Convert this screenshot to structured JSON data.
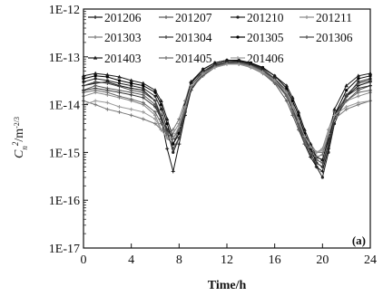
{
  "chart_data": {
    "type": "line",
    "title": "",
    "xlabel": "Time/h",
    "ylabel_text": "C",
    "ylabel_sub": "n",
    "ylabel_sup": "2",
    "ylabel_unit": "/m",
    "ylabel_unit_sup": "-2/3",
    "panel_label": "(a)",
    "xlim": [
      0,
      24
    ],
    "ylim": [
      1e-17,
      1e-12
    ],
    "y_scale": "log",
    "grid": false,
    "legend_position": "top",
    "x_ticks": [
      0,
      4,
      8,
      12,
      16,
      20,
      24
    ],
    "x_tick_labels": [
      "0",
      "4",
      "8",
      "12",
      "16",
      "20",
      "24"
    ],
    "y_ticks": [
      1e-17,
      1e-16,
      1e-15,
      1e-14,
      1e-13,
      1e-12
    ],
    "y_tick_labels": [
      "1E-17",
      "1E-16",
      "1E-15",
      "1E-14",
      "1E-13",
      "1E-12"
    ],
    "x": [
      0,
      1,
      2,
      3,
      4,
      5,
      6,
      6.5,
      7,
      7.5,
      8,
      8.5,
      9,
      10,
      11,
      12,
      13,
      14,
      15,
      16,
      17,
      17.5,
      18,
      18.5,
      19,
      19.5,
      20,
      20.5,
      21,
      22,
      23,
      24
    ],
    "series": [
      {
        "name": "201206",
        "color": "#111111",
        "marker": "cross",
        "values": [
          2.5e-14,
          2.8e-14,
          3e-14,
          2.5e-14,
          2.2e-14,
          2e-14,
          1.2e-14,
          5e-15,
          1.2e-15,
          4e-16,
          1.5e-15,
          6e-15,
          2e-14,
          4.5e-14,
          6.5e-14,
          7.5e-14,
          7.5e-14,
          6.5e-14,
          5e-14,
          3.2e-14,
          1.5e-14,
          8e-15,
          3.5e-15,
          1.5e-15,
          8e-16,
          5e-16,
          4e-16,
          1.2e-15,
          5e-15,
          1.5e-14,
          2.5e-14,
          3e-14
        ]
      },
      {
        "name": "201207",
        "color": "#555555",
        "marker": "cross",
        "values": [
          2e-14,
          2.5e-14,
          2.2e-14,
          2e-14,
          1.8e-14,
          1.6e-14,
          1e-14,
          5e-15,
          2e-15,
          1.5e-15,
          3e-15,
          8e-15,
          2.2e-14,
          4e-14,
          6e-14,
          7e-14,
          7.2e-14,
          6e-14,
          4.5e-14,
          2.8e-14,
          1.2e-14,
          6e-15,
          3e-15,
          1.5e-15,
          1e-15,
          7e-16,
          6e-16,
          1.5e-15,
          5e-15,
          1.2e-14,
          2e-14,
          2.5e-14
        ]
      },
      {
        "name": "201210",
        "color": "#222222",
        "marker": "dot",
        "values": [
          3e-14,
          3.5e-14,
          3.2e-14,
          2.8e-14,
          2.5e-14,
          2.2e-14,
          1.5e-14,
          8e-15,
          3e-15,
          1e-15,
          2e-15,
          7e-15,
          2.5e-14,
          5e-14,
          7e-14,
          8e-14,
          8e-14,
          7e-14,
          5.5e-14,
          3.5e-14,
          2e-14,
          1e-14,
          5e-15,
          2e-15,
          1e-15,
          5e-16,
          3e-16,
          1e-15,
          4e-15,
          1.5e-14,
          3e-14,
          3.5e-14
        ]
      },
      {
        "name": "201211",
        "color": "#888888",
        "marker": "cross",
        "values": [
          1.5e-14,
          1.8e-14,
          1.6e-14,
          1.4e-14,
          1.2e-14,
          1e-14,
          6e-15,
          3e-15,
          2e-15,
          2.5e-15,
          4e-15,
          1e-14,
          2.5e-14,
          4.5e-14,
          6e-14,
          7e-14,
          7e-14,
          6e-14,
          4.5e-14,
          3e-14,
          1.5e-14,
          8e-15,
          4e-15,
          2e-15,
          1.2e-15,
          1e-15,
          1.2e-15,
          3e-15,
          7e-15,
          1.2e-14,
          1.5e-14,
          1.8e-14
        ]
      },
      {
        "name": "201303",
        "color": "#777777",
        "marker": "cross",
        "values": [
          1.2e-14,
          1e-14,
          8e-15,
          7e-15,
          6e-15,
          5e-15,
          4e-15,
          3e-15,
          2.5e-15,
          3e-15,
          5e-15,
          1.2e-14,
          3e-14,
          5e-14,
          6.5e-14,
          7.5e-14,
          7.5e-14,
          6.5e-14,
          5e-14,
          3.5e-14,
          2e-14,
          1e-14,
          5e-15,
          2.5e-15,
          1.5e-15,
          1e-15,
          1e-15,
          2e-15,
          5e-15,
          8e-15,
          1e-14,
          1.2e-14
        ]
      },
      {
        "name": "201304",
        "color": "#333333",
        "marker": "cross",
        "values": [
          2e-14,
          2.2e-14,
          2e-14,
          1.8e-14,
          1.6e-14,
          1.4e-14,
          9e-15,
          5e-15,
          3e-15,
          2e-15,
          3e-15,
          9e-15,
          2.5e-14,
          4.8e-14,
          6.8e-14,
          8e-14,
          8e-14,
          7e-14,
          5.5e-14,
          3.5e-14,
          1.8e-14,
          9e-15,
          4e-15,
          2e-15,
          1.2e-15,
          8e-16,
          7e-16,
          1.8e-15,
          6e-15,
          1.5e-14,
          2.2e-14,
          2.5e-14
        ]
      },
      {
        "name": "201305",
        "color": "#000000",
        "marker": "dot",
        "values": [
          3.5e-14,
          4e-14,
          3.8e-14,
          3.2e-14,
          2.8e-14,
          2.5e-14,
          1.8e-14,
          1e-14,
          4e-15,
          1.5e-15,
          2.5e-15,
          8e-15,
          2.8e-14,
          5.5e-14,
          7.5e-14,
          8.5e-14,
          8.5e-14,
          7.5e-14,
          6e-14,
          4e-14,
          2.2e-14,
          1.2e-14,
          6e-15,
          2.5e-15,
          1.2e-15,
          6e-16,
          5e-16,
          1.5e-15,
          6e-15,
          2e-14,
          3.5e-14,
          4e-14
        ]
      },
      {
        "name": "201306",
        "color": "#444444",
        "marker": "cross",
        "values": [
          2.5e-14,
          3e-14,
          2.8e-14,
          2.4e-14,
          2e-14,
          1.8e-14,
          1.2e-14,
          6e-15,
          2.5e-15,
          1.2e-15,
          2e-15,
          7e-15,
          2.2e-14,
          4.5e-14,
          6.5e-14,
          7.5e-14,
          7.8e-14,
          6.8e-14,
          5.2e-14,
          3.2e-14,
          1.6e-14,
          8e-15,
          4e-15,
          1.8e-15,
          9e-16,
          6e-16,
          5e-16,
          1.5e-15,
          5e-15,
          1.6e-14,
          2.8e-14,
          3.2e-14
        ]
      },
      {
        "name": "201403",
        "color": "#1a1a1a",
        "marker": "triangle",
        "values": [
          4e-14,
          4.5e-14,
          4.2e-14,
          3.8e-14,
          3.2e-14,
          2.8e-14,
          2e-14,
          1.2e-14,
          5e-15,
          2e-15,
          3e-15,
          1e-14,
          3e-14,
          5.5e-14,
          7.5e-14,
          8.5e-14,
          8.2e-14,
          7.2e-14,
          5.8e-14,
          4e-14,
          2.5e-14,
          1.4e-14,
          7e-15,
          3e-15,
          1.5e-15,
          8e-16,
          7e-16,
          2e-15,
          8e-15,
          2.5e-14,
          4e-14,
          4.5e-14
        ]
      },
      {
        "name": "201405",
        "color": "#666666",
        "marker": "cross",
        "values": [
          1.8e-14,
          2e-14,
          1.8e-14,
          1.5e-14,
          1.3e-14,
          1.1e-14,
          7e-15,
          4e-15,
          2.5e-15,
          2e-15,
          3e-15,
          8e-15,
          2.2e-14,
          4.2e-14,
          6.2e-14,
          7.2e-14,
          7.2e-14,
          6.2e-14,
          4.8e-14,
          3e-14,
          1.5e-14,
          7e-15,
          3.5e-15,
          1.8e-15,
          1e-15,
          8e-16,
          9e-16,
          2.2e-15,
          6e-15,
          1.2e-14,
          1.8e-14,
          2e-14
        ]
      },
      {
        "name": "201406",
        "color": "#999999",
        "marker": "cross",
        "values": [
          1e-14,
          1.2e-14,
          1.1e-14,
          9e-15,
          8e-15,
          7e-15,
          5e-15,
          3e-15,
          2e-15,
          2e-15,
          3.5e-15,
          9e-15,
          2.5e-14,
          4.5e-14,
          6e-14,
          7e-14,
          7e-14,
          6.2e-14,
          4.8e-14,
          3.2e-14,
          1.8e-14,
          9e-15,
          4.5e-15,
          2.2e-15,
          1.3e-15,
          1e-15,
          1.1e-15,
          2.5e-15,
          6e-15,
          9e-15,
          1.1e-14,
          1.2e-14
        ]
      }
    ]
  }
}
